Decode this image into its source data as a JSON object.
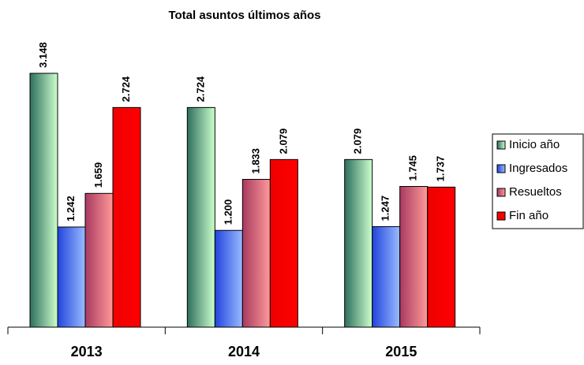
{
  "chart_data": {
    "type": "bar",
    "title": "Total asuntos últimos años",
    "categories": [
      "2013",
      "2014",
      "2015"
    ],
    "series": [
      {
        "name": "Inicio año",
        "color": "#ccffcc",
        "values": [
          3148,
          2724,
          2079
        ],
        "value_labels": [
          "3.148",
          "2.724",
          "2.079"
        ]
      },
      {
        "name": "Ingresados",
        "color": "#99bbff",
        "values": [
          1242,
          1200,
          1247
        ],
        "value_labels": [
          "1.242",
          "1.200",
          "1.247"
        ]
      },
      {
        "name": "Resueltos",
        "color": "#ff9999",
        "values": [
          1659,
          1833,
          1745
        ],
        "value_labels": [
          "1.659",
          "1.833",
          "1.745"
        ]
      },
      {
        "name": "Fin año",
        "color": "#ff0000",
        "values": [
          2724,
          2079,
          1737
        ],
        "value_labels": [
          "2.724",
          "2.079",
          "1.737"
        ]
      }
    ],
    "ylim": [
      0,
      3500
    ],
    "legend": "right"
  }
}
